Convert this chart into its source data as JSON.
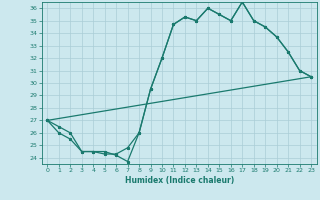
{
  "xlabel": "Humidex (Indice chaleur)",
  "bg_color": "#cce8ee",
  "grid_color": "#aacdd6",
  "line_color": "#1a7a6e",
  "xlim": [
    -0.5,
    23.5
  ],
  "ylim": [
    23.5,
    36.5
  ],
  "xticks": [
    0,
    1,
    2,
    3,
    4,
    5,
    6,
    7,
    8,
    9,
    10,
    11,
    12,
    13,
    14,
    15,
    16,
    17,
    18,
    19,
    20,
    21,
    22,
    23
  ],
  "yticks": [
    24,
    25,
    26,
    27,
    28,
    29,
    30,
    31,
    32,
    33,
    34,
    35,
    36
  ],
  "curve1_x": [
    0,
    1,
    2,
    3,
    4,
    5,
    6,
    7,
    8,
    9,
    10,
    11,
    12,
    13,
    14,
    15,
    16,
    17,
    18,
    19,
    20,
    21,
    22,
    23
  ],
  "curve1_y": [
    27,
    26.5,
    26,
    24.5,
    24.5,
    24.5,
    24.2,
    23.7,
    26.0,
    29.5,
    32.0,
    34.7,
    35.3,
    35.0,
    36.0,
    35.5,
    35.0,
    36.5,
    35.0,
    34.5,
    33.7,
    32.5,
    31.0,
    30.5
  ],
  "curve2_x": [
    0,
    1,
    2,
    3,
    4,
    5,
    6,
    7,
    8,
    9,
    10,
    11,
    12,
    13,
    14,
    15,
    16,
    17,
    18,
    19,
    20,
    21,
    22,
    23
  ],
  "curve2_y": [
    27,
    26.0,
    25.5,
    24.5,
    24.5,
    24.3,
    24.3,
    24.8,
    26.0,
    29.5,
    32.0,
    34.7,
    35.3,
    35.0,
    36.0,
    35.5,
    35.0,
    36.5,
    35.0,
    34.5,
    33.7,
    32.5,
    31.0,
    30.5
  ],
  "line3_x": [
    0,
    23
  ],
  "line3_y": [
    27,
    30.5
  ]
}
